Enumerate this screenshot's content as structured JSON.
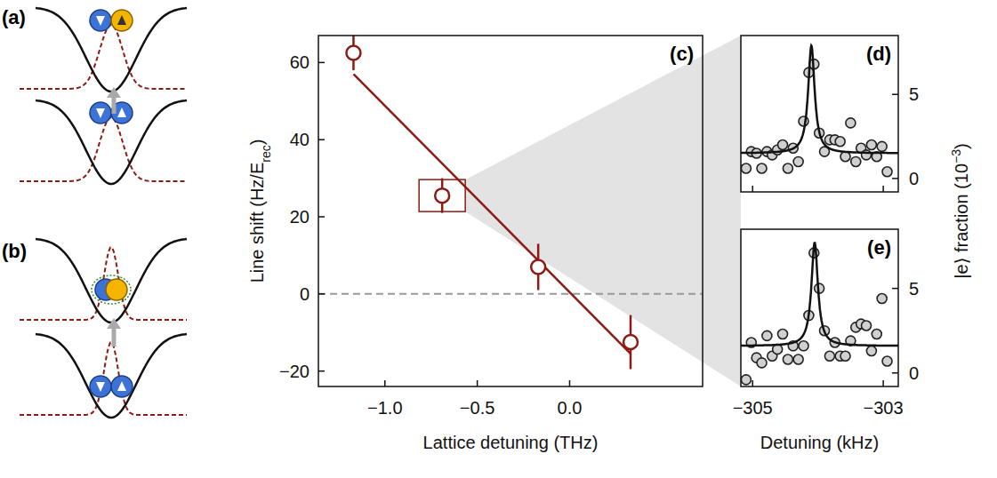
{
  "diagram": {
    "panels": [
      {
        "label": "(a)"
      },
      {
        "label": "(b)"
      }
    ]
  },
  "chart_data": [
    {
      "panel": "(c)",
      "type": "scatter",
      "marker": "circle",
      "color": "#8c1b13",
      "xlabel": "Lattice detuning (THz)",
      "ylabel": [
        "Line shift (Hz/E",
        "rec",
        ")"
      ],
      "x": [
        -1.17,
        -0.69,
        -0.17,
        0.33
      ],
      "values": [
        62.5,
        25.5,
        7,
        -12.5
      ],
      "errors": [
        4.5,
        4.5,
        6,
        7
      ],
      "fit": {
        "x": [
          -1.17,
          0.33
        ],
        "values": [
          57,
          -15.5
        ]
      },
      "reference_line": 0,
      "highlight_index": 1,
      "xlim": [
        -1.36,
        0.72
      ],
      "ylim": [
        -24,
        67
      ],
      "xticks": [
        {
          "value": -1,
          "label": "−1.0"
        },
        {
          "value": -0.5,
          "label": "−0.5"
        },
        {
          "value": 0,
          "label": "0.0"
        }
      ],
      "yticks": [
        {
          "value": -20,
          "label": "−20"
        },
        0,
        20,
        40,
        60
      ],
      "grid": false
    },
    {
      "panel": "(d)",
      "type": "scatter",
      "marker": "circle",
      "color": "#d0d0d0",
      "tick_labels": "y",
      "x": [
        -305.1,
        -305.02,
        -304.94,
        -304.86,
        -304.78,
        -304.7,
        -304.62,
        -304.54,
        -304.46,
        -304.38,
        -304.3,
        -304.22,
        -304.14,
        -304.06,
        -303.98,
        -303.9,
        -303.82,
        -303.74,
        -303.66,
        -303.58,
        -303.5,
        -303.42,
        -303.34,
        -303.26,
        -303.18,
        -303.1,
        -303.02,
        -302.94
      ],
      "values": [
        0.6,
        1.6,
        1.5,
        0.6,
        1.6,
        1.4,
        1.7,
        2.0,
        0.6,
        1.8,
        1.0,
        3.4,
        6.3,
        6.8,
        2.7,
        1.6,
        2.3,
        2.3,
        2.2,
        1.3,
        3.3,
        1.0,
        1.8,
        1.4,
        2.0,
        1.3,
        1.9,
        0.4
      ],
      "fit": {
        "center": -304.1,
        "width": 0.12,
        "amplitude": 6.4,
        "offset": 1.5
      },
      "xlim": [
        -305.18,
        -302.77
      ],
      "ylim": [
        -0.8,
        8.5
      ],
      "xticks": [
        -305,
        -303
      ],
      "yticks": [
        0,
        5
      ],
      "grid": false
    },
    {
      "panel": "(e)",
      "type": "scatter",
      "marker": "circle",
      "color": "#d0d0d0",
      "xlabel": "Detuning (kHz)",
      "ylabel": [
        "|e⟩ fraction (10",
        "−3",
        ")"
      ],
      "x": [
        -305.1,
        -305.02,
        -304.94,
        -304.86,
        -304.78,
        -304.7,
        -304.62,
        -304.54,
        -304.46,
        -304.38,
        -304.3,
        -304.22,
        -304.14,
        -304.06,
        -303.98,
        -303.9,
        -303.82,
        -303.74,
        -303.66,
        -303.58,
        -303.5,
        -303.42,
        -303.34,
        -303.26,
        -303.18,
        -303.1,
        -303.02,
        -302.94
      ],
      "values": [
        -0.4,
        1.8,
        0.9,
        0.6,
        2.2,
        1.0,
        1.4,
        2.3,
        0.8,
        1.6,
        0.8,
        1.6,
        3.4,
        7.1,
        5.0,
        2.5,
        1.0,
        1.8,
        1.0,
        1.0,
        1.9,
        2.7,
        2.9,
        2.8,
        1.3,
        2.3,
        4.4,
        0.7
      ],
      "fit": {
        "center": -304.05,
        "width": 0.12,
        "amplitude": 6.1,
        "offset": 1.6
      },
      "xlim": [
        -305.18,
        -302.77
      ],
      "ylim": [
        -0.8,
        8.5
      ],
      "xticks": [
        {
          "value": -305,
          "label": "−305"
        },
        {
          "value": -303,
          "label": "−303"
        }
      ],
      "yticks": [
        0,
        5
      ],
      "grid": false
    }
  ]
}
